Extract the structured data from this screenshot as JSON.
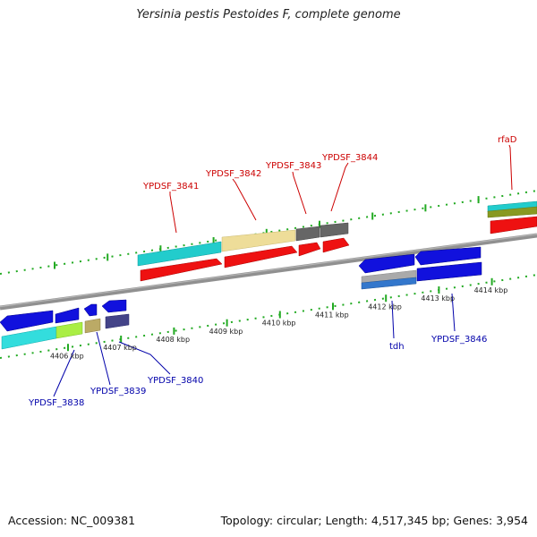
{
  "title": "Yersinia pestis Pestoides F, complete genome",
  "footer": {
    "accession": "Accession: NC_009381",
    "summary": "Topology: circular; Length: 4,517,345 bp; Genes: 3,954"
  },
  "colors": {
    "forward_label": "#cc0000",
    "reverse_label": "#0000aa",
    "tick": "#22aa22",
    "backbone": "#808080"
  },
  "positions": [
    {
      "label": "4406 kbp",
      "kbp": 4406
    },
    {
      "label": "4407 kbp",
      "kbp": 4407
    },
    {
      "label": "4408 kbp",
      "kbp": 4408
    },
    {
      "label": "4409 kbp",
      "kbp": 4409
    },
    {
      "label": "4410 kbp",
      "kbp": 4410
    },
    {
      "label": "4411 kbp",
      "kbp": 4411
    },
    {
      "label": "4412 kbp",
      "kbp": 4412
    },
    {
      "label": "4413 kbp",
      "kbp": 4413
    },
    {
      "label": "4414 kbp",
      "kbp": 4414
    }
  ],
  "forward_genes": [
    {
      "label": "YPDSF_3841",
      "color": "#ee1111",
      "feature_color": "#22cccc"
    },
    {
      "label": "YPDSF_3842",
      "color": "#ee1111",
      "feature_color": "#eedd99"
    },
    {
      "label": "YPDSF_3843",
      "color": "#ee1111",
      "feature_color": "#666666"
    },
    {
      "label": "YPDSF_3844",
      "color": "#ee1111",
      "feature_color": "#666666"
    },
    {
      "label": "rfaD",
      "color": "#ee1111",
      "feature_color": "#22cccc"
    }
  ],
  "reverse_genes": [
    {
      "label": "YPDSF_3838",
      "color": "#1111dd",
      "feature_color": "#33dddd"
    },
    {
      "label": "YPDSF_3839",
      "color": "#1111dd",
      "feature_color": "#aaee44"
    },
    {
      "label": "YPDSF_3840",
      "color": "#444488",
      "feature_color": "#bbaa66"
    },
    {
      "label": "tdh",
      "color": "#1111dd",
      "feature_color": "#aaaaaa"
    },
    {
      "label": "YPDSF_3846",
      "color": "#1111dd",
      "feature_color": "#3377cc"
    }
  ]
}
